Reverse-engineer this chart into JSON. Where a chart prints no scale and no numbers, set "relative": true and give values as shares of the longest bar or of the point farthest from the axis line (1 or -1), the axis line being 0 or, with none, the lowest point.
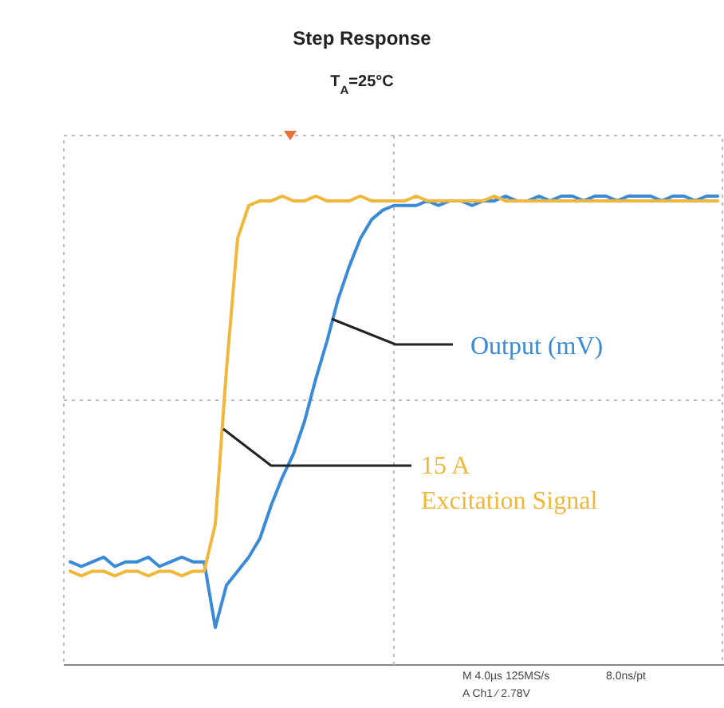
{
  "chart_data": {
    "type": "line",
    "title": "Step Response",
    "subtitle": "T$_{A}$=25°C",
    "relative": true,
    "line_style": "solid",
    "categories": [
      null,
      null,
      null,
      null,
      null,
      null,
      null,
      null,
      null,
      null,
      null,
      null,
      null,
      null,
      null,
      null,
      null,
      null,
      null,
      null,
      null,
      null,
      null,
      null,
      null,
      null,
      null,
      null,
      null,
      null,
      null,
      null,
      null,
      null,
      null,
      null,
      null,
      null,
      null,
      null,
      null,
      null,
      null,
      null,
      null,
      null,
      null,
      null,
      null,
      null,
      null,
      null,
      null,
      null,
      null,
      null,
      null,
      null,
      null
    ],
    "series": [
      {
        "name": "Output (mV)",
        "color": "#3a8ad8",
        "values": [
          0.22,
          0.21,
          0.22,
          0.23,
          0.21,
          0.22,
          0.22,
          0.23,
          0.21,
          0.22,
          0.23,
          0.22,
          0.22,
          0.08,
          0.17,
          0.2,
          0.23,
          0.27,
          0.34,
          0.4,
          0.45,
          0.52,
          0.61,
          0.69,
          0.78,
          0.85,
          0.91,
          0.95,
          0.97,
          0.98,
          0.98,
          0.98,
          0.99,
          0.98,
          0.99,
          0.99,
          0.98,
          0.99,
          0.99,
          1,
          0.99,
          0.99,
          1,
          0.99,
          1,
          1,
          0.99,
          1,
          1,
          0.99,
          1,
          1,
          1,
          0.99,
          1,
          1,
          0.99,
          1,
          1
        ]
      },
      {
        "name": "15 A\nExcitation Signal",
        "color": "#f0b73a",
        "values": [
          0.2,
          0.19,
          0.2,
          0.2,
          0.19,
          0.2,
          0.2,
          0.19,
          0.2,
          0.2,
          0.19,
          0.2,
          0.2,
          0.3,
          0.63,
          0.91,
          0.98,
          0.99,
          0.99,
          1,
          0.99,
          0.99,
          1,
          0.99,
          0.99,
          0.99,
          1,
          0.99,
          0.99,
          0.99,
          0.99,
          1,
          0.99,
          0.99,
          0.99,
          0.99,
          0.99,
          0.99,
          1,
          0.99,
          0.99,
          0.99,
          0.99,
          0.99,
          0.99,
          0.99,
          0.99,
          0.99,
          0.99,
          0.99,
          0.99,
          0.99,
          0.99,
          0.99,
          0.99,
          0.99,
          0.99,
          0.99,
          0.99
        ]
      }
    ],
    "annotations": [
      "M 4.0µs 125MS/s",
      "8.0ns/pt",
      "A Ch1 ⁄ 2.78V"
    ]
  }
}
